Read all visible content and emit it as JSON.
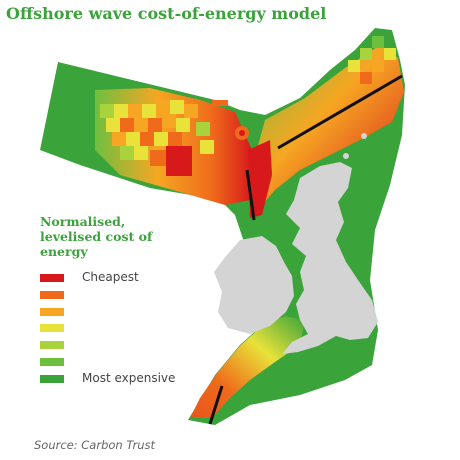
{
  "title": "Offshore wave cost-of-energy model",
  "accent_color": "#3aa33a",
  "legend": {
    "title": "Normalised, levelised cost of energy",
    "items": [
      {
        "label": "Cheapest",
        "color": "#d7191c"
      },
      {
        "label": "",
        "color": "#ef6a1b"
      },
      {
        "label": "",
        "color": "#f6a623"
      },
      {
        "label": "",
        "color": "#e8e23a"
      },
      {
        "label": "",
        "color": "#a8d33c"
      },
      {
        "label": "",
        "color": "#6fbf3f"
      },
      {
        "label": "Most expensive",
        "color": "#3aa33a"
      }
    ]
  },
  "source": "Source: Carbon Trust",
  "map": {
    "land_color": "#d4d4d4",
    "sea_zone_base_color": "#3aa33a",
    "marker_color": "#111111"
  }
}
